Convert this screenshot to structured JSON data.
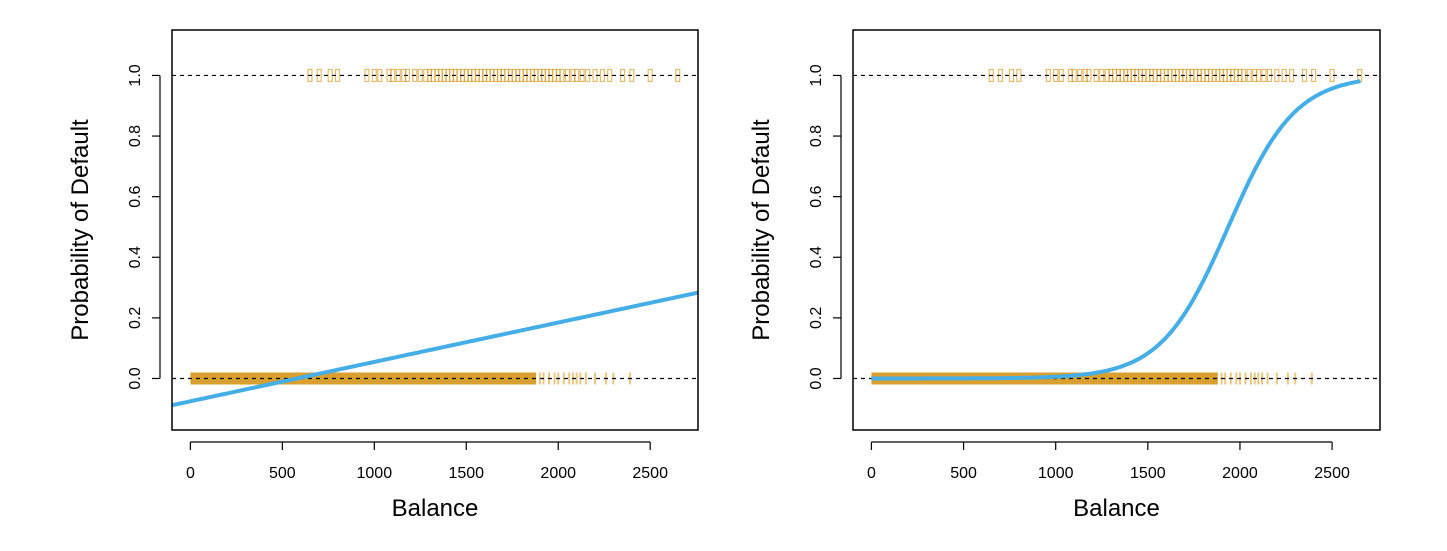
{
  "chart_data": [
    {
      "type": "scatter+line",
      "title": "",
      "xlabel": "Balance",
      "ylabel": "Probability of Default",
      "xlim": [
        -100,
        2760
      ],
      "ylim": [
        -0.17,
        1.15
      ],
      "xticks": [
        0,
        500,
        1000,
        1500,
        2000,
        2500
      ],
      "yticks": [
        0.0,
        0.2,
        0.4,
        0.6,
        0.8,
        1.0
      ],
      "xtick_labels": [
        "0",
        "500",
        "1000",
        "1500",
        "2000",
        "2500"
      ],
      "ytick_labels": [
        "0.0",
        "0.2",
        "0.4",
        "0.6",
        "0.8",
        "1.0"
      ],
      "reference_lines": [
        0,
        1
      ],
      "fit": {
        "kind": "linear",
        "intercept": -0.0752,
        "slope": 0.0001299,
        "x_range": [
          -100,
          2760
        ]
      },
      "default_balances": [
        650,
        700,
        760,
        800,
        960,
        1000,
        1030,
        1080,
        1100,
        1130,
        1160,
        1180,
        1220,
        1250,
        1280,
        1300,
        1320,
        1340,
        1360,
        1380,
        1400,
        1420,
        1440,
        1460,
        1480,
        1500,
        1520,
        1540,
        1560,
        1580,
        1600,
        1620,
        1640,
        1660,
        1680,
        1700,
        1720,
        1740,
        1760,
        1780,
        1800,
        1820,
        1840,
        1860,
        1880,
        1900,
        1920,
        1940,
        1960,
        1980,
        2000,
        2020,
        2050,
        2080,
        2100,
        2130,
        2160,
        2200,
        2240,
        2280,
        2350,
        2400,
        2500,
        2650
      ],
      "nondefault_dense_range": [
        0,
        1880
      ],
      "nondefault_sparse": [
        1900,
        1920,
        1950,
        1980,
        2000,
        2030,
        2060,
        2080,
        2100,
        2120,
        2150,
        2200,
        2260,
        2300,
        2390
      ]
    },
    {
      "type": "scatter+line",
      "title": "",
      "xlabel": "Balance",
      "ylabel": "Probability of Default",
      "xlim": [
        -100,
        2760
      ],
      "ylim": [
        -0.17,
        1.15
      ],
      "xticks": [
        0,
        500,
        1000,
        1500,
        2000,
        2500
      ],
      "yticks": [
        0.0,
        0.2,
        0.4,
        0.6,
        0.8,
        1.0
      ],
      "xtick_labels": [
        "0",
        "500",
        "1000",
        "1500",
        "2000",
        "2500"
      ],
      "ytick_labels": [
        "0.0",
        "0.2",
        "0.4",
        "0.6",
        "0.8",
        "1.0"
      ],
      "reference_lines": [
        0,
        1
      ],
      "fit": {
        "kind": "logistic",
        "intercept": -10.65,
        "slope": 0.0055,
        "x_range": [
          0,
          2654
        ]
      },
      "default_balances": [
        650,
        700,
        760,
        800,
        960,
        1000,
        1030,
        1080,
        1100,
        1130,
        1160,
        1180,
        1220,
        1250,
        1280,
        1300,
        1320,
        1340,
        1360,
        1380,
        1400,
        1420,
        1440,
        1460,
        1480,
        1500,
        1520,
        1540,
        1560,
        1580,
        1600,
        1620,
        1640,
        1660,
        1680,
        1700,
        1720,
        1740,
        1760,
        1780,
        1800,
        1820,
        1840,
        1860,
        1880,
        1900,
        1920,
        1940,
        1960,
        1980,
        2000,
        2020,
        2050,
        2080,
        2100,
        2130,
        2160,
        2200,
        2240,
        2280,
        2350,
        2400,
        2500,
        2650
      ],
      "nondefault_dense_range": [
        0,
        1880
      ],
      "nondefault_sparse": [
        1900,
        1920,
        1950,
        1980,
        2000,
        2030,
        2060,
        2080,
        2100,
        2120,
        2150,
        2200,
        2260,
        2300,
        2390
      ]
    }
  ],
  "colors": {
    "rug": "#D9A030",
    "fit": "#45AEE6",
    "axis": "#000000"
  }
}
